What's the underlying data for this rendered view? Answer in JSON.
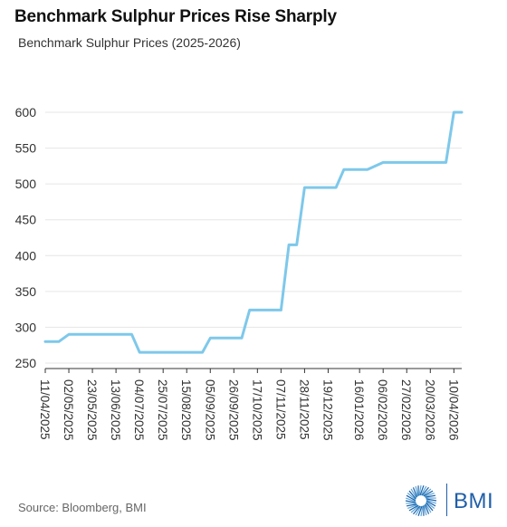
{
  "title": "Benchmark Sulphur Prices Rise Sharply",
  "subtitle": "Benchmark Sulphur Prices (2025-2026)",
  "source": "Source: Bloomberg, BMI",
  "logo_text": "BMI",
  "colors": {
    "line": "#7ec8ea",
    "grid": "#e6e6e6",
    "axis": "#333333",
    "brand": "#1f5fa8"
  },
  "chart_data": {
    "type": "line",
    "title": "Benchmark Sulphur Prices Rise Sharply",
    "subtitle": "Benchmark Sulphur Prices (2025-2026)",
    "xlabel": "",
    "ylabel": "",
    "ylim": [
      250,
      600
    ],
    "yticks": [
      250,
      300,
      350,
      400,
      450,
      500,
      550,
      600
    ],
    "xlim": [
      "11/04/2025",
      "17/04/2026"
    ],
    "xticks": [
      "11/04/2025",
      "02/05/2025",
      "23/05/2025",
      "13/06/2025",
      "04/07/2025",
      "25/07/2025",
      "15/08/2025",
      "05/09/2025",
      "26/09/2025",
      "17/10/2025",
      "07/11/2025",
      "28/11/2025",
      "19/12/2025",
      "16/01/2026",
      "06/02/2026",
      "27/02/2026",
      "20/03/2026",
      "10/04/2026"
    ],
    "grid": true,
    "series": [
      {
        "x": [
          "11/04/2025",
          "23/04/2025",
          "02/05/2025",
          "27/06/2025",
          "04/07/2025",
          "29/08/2025",
          "05/09/2025",
          "03/10/2025",
          "10/10/2025",
          "31/10/2025",
          "07/11/2025",
          "14/11/2025",
          "21/11/2025",
          "28/11/2025",
          "05/12/2025",
          "26/12/2025",
          "02/01/2026",
          "16/01/2026",
          "23/01/2026",
          "06/02/2026",
          "13/02/2026",
          "20/03/2026",
          "03/04/2026",
          "10/04/2026",
          "17/04/2026"
        ],
        "values": [
          280,
          280,
          290,
          290,
          265,
          265,
          285,
          285,
          324,
          324,
          324,
          415,
          415,
          495,
          495,
          495,
          520,
          520,
          520,
          530,
          530,
          530,
          530,
          600,
          600
        ]
      }
    ]
  }
}
